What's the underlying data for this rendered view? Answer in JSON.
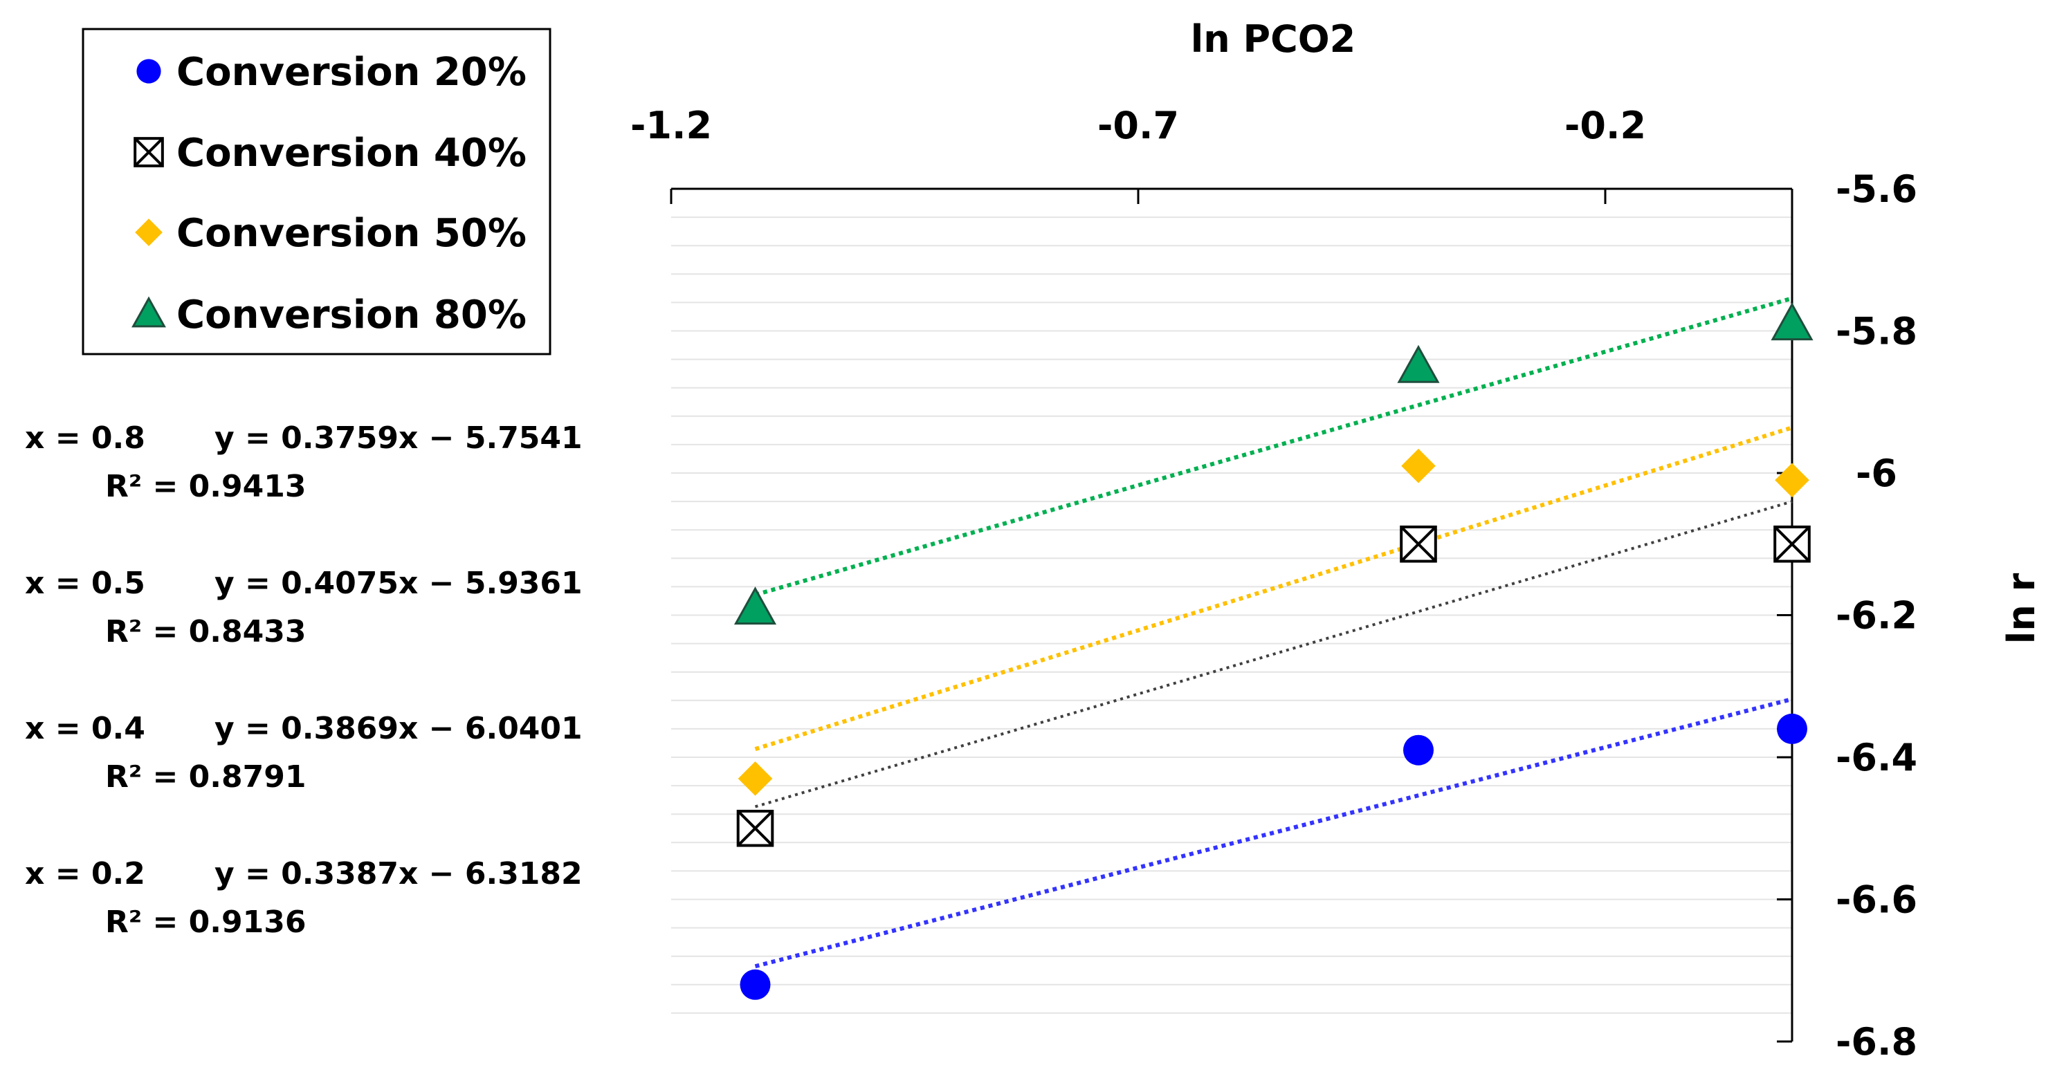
{
  "chart_data": {
    "type": "scatter",
    "xlabel": "ln PCO2",
    "ylabel": "ln r",
    "xlim": [
      -1.2,
      0.0
    ],
    "ylim": [
      -6.8,
      -5.6
    ],
    "x_ticks": [
      -1.2,
      -0.7,
      -0.2
    ],
    "x_tick_labels": [
      "-1.2",
      "-0.7",
      "-0.2"
    ],
    "y_ticks": [
      -5.6,
      -5.8,
      -6.0,
      -6.2,
      -6.4,
      -6.6,
      -6.8
    ],
    "y_tick_labels": [
      "-5.6",
      "-5.8",
      "-6",
      "-6.2",
      "-6.4",
      "-6.6",
      "-6.8"
    ],
    "x_axis_position": "top",
    "y_axis_position": "right",
    "minor_grid": true,
    "series": [
      {
        "name": "Conversion 20%",
        "color": "#0000ff",
        "marker": "circle",
        "x": [
          -1.11,
          -0.4,
          0.0
        ],
        "y": [
          -6.72,
          -6.39,
          -6.36
        ],
        "trendline": {
          "slope": 0.3387,
          "intercept": -6.3182,
          "x_range": [
            -1.11,
            0.0
          ],
          "color": "#3333ff"
        }
      },
      {
        "name": "Conversion 40%",
        "color": "#000000",
        "marker": "box-x",
        "x": [
          -1.11,
          -0.4,
          0.0
        ],
        "y": [
          -6.5,
          -6.1,
          -6.1
        ],
        "trendline": {
          "slope": 0.3869,
          "intercept": -6.0401,
          "x_range": [
            -1.11,
            0.0
          ],
          "color": "#404040"
        }
      },
      {
        "name": "Conversion 50%",
        "color": "#ffc000",
        "marker": "diamond",
        "x": [
          -1.11,
          -0.4,
          0.0
        ],
        "y": [
          -6.43,
          -5.99,
          -6.01
        ],
        "trendline": {
          "slope": 0.4075,
          "intercept": -5.9361,
          "x_range": [
            -1.11,
            0.0
          ],
          "color": "#ffc000"
        }
      },
      {
        "name": "Conversion 80%",
        "color": "#00a060",
        "marker": "triangle",
        "x": [
          -1.11,
          -0.4,
          0.0
        ],
        "y": [
          -6.19,
          -5.85,
          -5.79
        ],
        "trendline": {
          "slope": 0.3759,
          "intercept": -5.7541,
          "x_range": [
            -1.11,
            0.0
          ],
          "color": "#00b050"
        }
      }
    ],
    "legend_position": "top-left",
    "annotations": [
      {
        "x_label": "x = 0.8",
        "equation": "y = 0.3759x − 5.7541",
        "r2": "R² = 0.9413"
      },
      {
        "x_label": "x = 0.5",
        "equation": "y = 0.4075x − 5.9361",
        "r2": "R² = 0.8433"
      },
      {
        "x_label": "x = 0.4",
        "equation": "y = 0.3869x − 6.0401",
        "r2": "R² = 0.8791"
      },
      {
        "x_label": "x = 0.2",
        "equation": "y = 0.3387x − 6.3182",
        "r2": "R² = 0.9136"
      }
    ]
  }
}
